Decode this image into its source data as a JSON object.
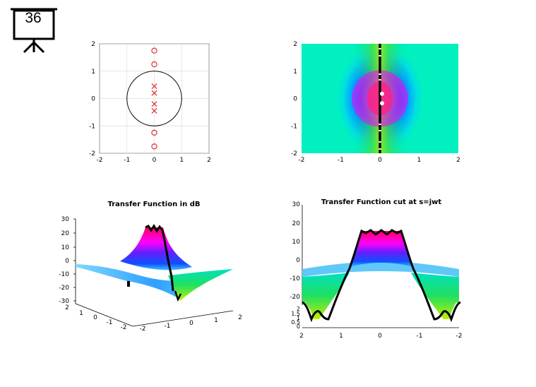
{
  "slide": {
    "number": "36"
  },
  "chart_data": [
    {
      "type": "scatter",
      "panel": "pole-zero plot",
      "title": "",
      "xlim": [
        -2,
        2
      ],
      "ylim": [
        -2,
        2
      ],
      "xticks": [
        "-2",
        "-1",
        "0",
        "1",
        "2"
      ],
      "yticks": [
        "2",
        "1",
        "0",
        "-1",
        "-2"
      ],
      "grid": true,
      "unit_circle": true,
      "zeros": [
        [
          0,
          1.75
        ],
        [
          0,
          1.25
        ],
        [
          0,
          -1.25
        ],
        [
          0,
          -1.75
        ]
      ],
      "poles": [
        [
          0,
          0.45
        ],
        [
          0,
          0.2
        ],
        [
          0,
          -0.2
        ],
        [
          0,
          -0.45
        ]
      ],
      "colors": {
        "marker": "#e03030",
        "circle": "#000000"
      }
    },
    {
      "type": "heatmap",
      "panel": "magnitude over s-plane (top view)",
      "title": "",
      "xlim": [
        -2,
        2
      ],
      "ylim": [
        -2,
        2
      ],
      "xticks": [
        "-2",
        "-1",
        "0",
        "1",
        "2"
      ],
      "yticks": [
        "2",
        "1",
        "0",
        "-1",
        "-2"
      ],
      "colormap": "hsv",
      "jw_axis": "x = 0"
    },
    {
      "type": "surface",
      "panel": "3D surface",
      "title": "Transfer Function in dB",
      "zticks": [
        "30",
        "20",
        "10",
        "0",
        "-10",
        "-20",
        "-30"
      ],
      "yticks": [
        "2",
        "1",
        "0",
        "-1",
        "-2"
      ],
      "xticks": [
        "-2",
        "-1",
        "0",
        "1",
        "2"
      ],
      "colormap": "hsv"
    },
    {
      "type": "surface",
      "panel": "3D surface, side view along jw axis",
      "title": "Transfer Function cut at s=jwt",
      "zticks": [
        "30",
        "20",
        "10",
        "0",
        "-10",
        "-20"
      ],
      "yticks": [
        "2",
        "1.5",
        "1",
        "0.5",
        "0"
      ],
      "xticks": [
        "2",
        "1",
        "0",
        "-1",
        "-2"
      ],
      "colormap": "hsv"
    }
  ]
}
